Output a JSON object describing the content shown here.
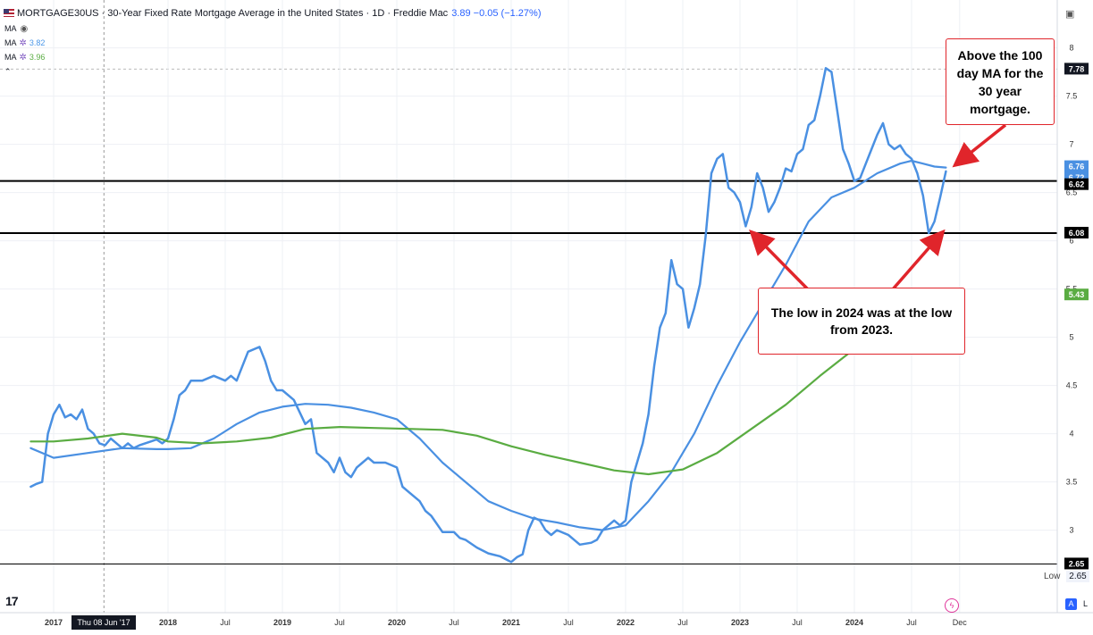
{
  "header": {
    "title": "MORTGAGE30US · 30-Year Fixed Rate Mortgage Average in the United States · 1D · Freddie Mac",
    "last_value": "3.89 −0.05 (−1.27%)"
  },
  "indicators": [
    {
      "label": "MA",
      "value": ""
    },
    {
      "label": "MA",
      "value": "3.82"
    },
    {
      "label": "MA",
      "value": "3.96"
    }
  ],
  "annotations": {
    "note_ma": "Above the 100 day MA for the 30 year mortgage.",
    "note_low": "The low in 2024 was at the low from 2023."
  },
  "low_label": "Low",
  "low_value": "2.65",
  "crosshair_date": "Thu 08 Jun '17",
  "scale_buttons": {
    "auto": "A",
    "log": "L"
  },
  "colors": {
    "price": "#4a90e2",
    "ma_fast": "#4a90e2",
    "ma_slow": "#5aac42",
    "annotation": "#e0252b",
    "level_line": "#000000"
  },
  "chart_data": {
    "type": "line",
    "title": "30-Year Fixed Rate Mortgage Average in the United States",
    "ylim": [
      2.5,
      8.2
    ],
    "x_ticks": [
      "2017",
      "2018",
      "Jul",
      "2019",
      "Jul",
      "2020",
      "Jul",
      "2021",
      "Jul",
      "2022",
      "Jul",
      "2023",
      "Jul",
      "2024",
      "Jul",
      "Dec"
    ],
    "y_ticks": [
      "3",
      "3.5",
      "4",
      "4.5",
      "5",
      "5.5",
      "6",
      "6.5",
      "7",
      "7.5",
      "8"
    ],
    "price_labels": [
      "7.78",
      "6.76",
      "6.72",
      "6.62",
      "6.08",
      "5.43",
      "2.65"
    ],
    "horizontal_levels": [
      6.62,
      6.08,
      2.65
    ],
    "series": [
      {
        "name": "MORTGAGE30US",
        "x": [
          2016.8,
          2016.85,
          2016.9,
          2016.95,
          2017.0,
          2017.05,
          2017.1,
          2017.15,
          2017.2,
          2017.25,
          2017.3,
          2017.35,
          2017.4,
          2017.45,
          2017.5,
          2017.55,
          2017.6,
          2017.65,
          2017.7,
          2017.75,
          2017.8,
          2017.85,
          2017.9,
          2017.95,
          2018.0,
          2018.05,
          2018.1,
          2018.15,
          2018.2,
          2018.3,
          2018.4,
          2018.5,
          2018.55,
          2018.6,
          2018.7,
          2018.8,
          2018.85,
          2018.9,
          2018.95,
          2019.0,
          2019.1,
          2019.2,
          2019.25,
          2019.3,
          2019.4,
          2019.45,
          2019.5,
          2019.55,
          2019.6,
          2019.65,
          2019.7,
          2019.75,
          2019.8,
          2019.9,
          2020.0,
          2020.05,
          2020.1,
          2020.2,
          2020.25,
          2020.3,
          2020.4,
          2020.5,
          2020.55,
          2020.6,
          2020.7,
          2020.8,
          2020.9,
          2020.95,
          2021.0,
          2021.05,
          2021.1,
          2021.15,
          2021.2,
          2021.25,
          2021.3,
          2021.35,
          2021.4,
          2021.5,
          2021.55,
          2021.6,
          2021.7,
          2021.75,
          2021.8,
          2021.85,
          2021.9,
          2021.95,
          2022.0,
          2022.05,
          2022.1,
          2022.15,
          2022.2,
          2022.25,
          2022.3,
          2022.35,
          2022.4,
          2022.45,
          2022.5,
          2022.55,
          2022.6,
          2022.65,
          2022.7,
          2022.75,
          2022.8,
          2022.85,
          2022.9,
          2022.95,
          2023.0,
          2023.05,
          2023.1,
          2023.15,
          2023.2,
          2023.25,
          2023.3,
          2023.35,
          2023.4,
          2023.45,
          2023.5,
          2023.55,
          2023.6,
          2023.65,
          2023.7,
          2023.75,
          2023.8,
          2023.85,
          2023.9,
          2023.95,
          2024.0,
          2024.05,
          2024.1,
          2024.15,
          2024.2,
          2024.25,
          2024.3,
          2024.35,
          2024.4,
          2024.45,
          2024.5,
          2024.55,
          2024.6,
          2024.65,
          2024.7,
          2024.75,
          2024.8
        ],
        "y": [
          3.45,
          3.48,
          3.5,
          4.0,
          4.2,
          4.3,
          4.17,
          4.2,
          4.15,
          4.25,
          4.05,
          4.0,
          3.9,
          3.88,
          3.95,
          3.9,
          3.85,
          3.9,
          3.85,
          3.88,
          3.9,
          3.92,
          3.94,
          3.9,
          3.95,
          4.15,
          4.4,
          4.45,
          4.55,
          4.55,
          4.6,
          4.55,
          4.6,
          4.55,
          4.85,
          4.9,
          4.75,
          4.55,
          4.45,
          4.45,
          4.35,
          4.1,
          4.15,
          3.8,
          3.7,
          3.6,
          3.75,
          3.6,
          3.55,
          3.65,
          3.7,
          3.75,
          3.7,
          3.7,
          3.65,
          3.45,
          3.4,
          3.3,
          3.2,
          3.15,
          2.98,
          2.98,
          2.92,
          2.9,
          2.82,
          2.76,
          2.73,
          2.7,
          2.67,
          2.72,
          2.75,
          3.0,
          3.13,
          3.1,
          3.0,
          2.95,
          3.0,
          2.95,
          2.9,
          2.85,
          2.87,
          2.9,
          3.0,
          3.05,
          3.1,
          3.05,
          3.1,
          3.5,
          3.7,
          3.9,
          4.2,
          4.7,
          5.1,
          5.25,
          5.8,
          5.55,
          5.5,
          5.1,
          5.3,
          5.55,
          6.05,
          6.7,
          6.85,
          6.9,
          6.55,
          6.5,
          6.4,
          6.15,
          6.35,
          6.7,
          6.55,
          6.3,
          6.4,
          6.55,
          6.75,
          6.72,
          6.9,
          6.95,
          7.2,
          7.25,
          7.5,
          7.79,
          7.75,
          7.35,
          6.95,
          6.8,
          6.62,
          6.65,
          6.8,
          6.95,
          7.1,
          7.22,
          7.0,
          6.95,
          6.99,
          6.9,
          6.85,
          6.7,
          6.47,
          6.08,
          6.2,
          6.45,
          6.72
        ]
      },
      {
        "name": "MA",
        "x": [
          2016.8,
          2017.0,
          2017.3,
          2017.6,
          2017.9,
          2018.0,
          2018.2,
          2018.4,
          2018.6,
          2018.8,
          2019.0,
          2019.2,
          2019.4,
          2019.6,
          2019.8,
          2020.0,
          2020.2,
          2020.4,
          2020.6,
          2020.8,
          2021.0,
          2021.2,
          2021.4,
          2021.6,
          2021.8,
          2022.0,
          2022.2,
          2022.4,
          2022.6,
          2022.8,
          2023.0,
          2023.2,
          2023.4,
          2023.6,
          2023.8,
          2024.0,
          2024.2,
          2024.4,
          2024.5,
          2024.6,
          2024.7,
          2024.8
        ],
        "y": [
          3.85,
          3.75,
          3.8,
          3.85,
          3.84,
          3.84,
          3.85,
          3.95,
          4.1,
          4.22,
          4.28,
          4.31,
          4.3,
          4.27,
          4.22,
          4.15,
          3.95,
          3.7,
          3.5,
          3.3,
          3.2,
          3.12,
          3.08,
          3.03,
          3.0,
          3.05,
          3.3,
          3.6,
          4.0,
          4.5,
          4.95,
          5.35,
          5.75,
          6.2,
          6.45,
          6.55,
          6.7,
          6.8,
          6.83,
          6.8,
          6.77,
          6.76
        ]
      },
      {
        "name": "MA",
        "x": [
          2016.8,
          2017.0,
          2017.3,
          2017.6,
          2017.9,
          2018.0,
          2018.3,
          2018.6,
          2018.9,
          2019.2,
          2019.5,
          2019.8,
          2020.1,
          2020.4,
          2020.7,
          2021.0,
          2021.3,
          2021.6,
          2021.9,
          2022.2,
          2022.5,
          2022.8,
          2023.1,
          2023.4,
          2023.7,
          2024.0,
          2024.3,
          2024.6,
          2024.8
        ],
        "y": [
          3.92,
          3.92,
          3.95,
          4.0,
          3.96,
          3.92,
          3.9,
          3.92,
          3.96,
          4.05,
          4.07,
          4.06,
          4.05,
          4.04,
          3.98,
          3.87,
          3.78,
          3.7,
          3.62,
          3.58,
          3.63,
          3.8,
          4.05,
          4.3,
          4.6,
          4.88,
          5.1,
          5.35,
          5.43
        ]
      }
    ]
  }
}
